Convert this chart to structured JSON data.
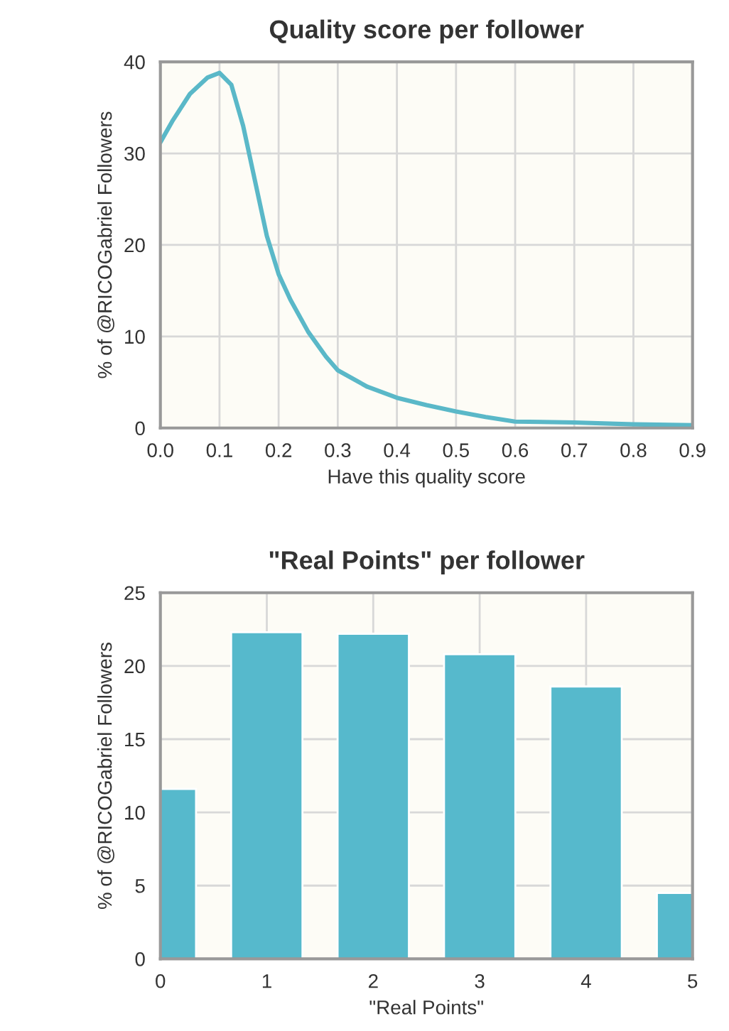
{
  "chart_data": [
    {
      "type": "line",
      "title": "Quality score per follower",
      "xlabel": "Have this quality score",
      "ylabel": "% of @RICOGabriel Followers",
      "x": [
        0,
        0.02,
        0.05,
        0.08,
        0.1,
        0.12,
        0.14,
        0.16,
        0.18,
        0.2,
        0.22,
        0.25,
        0.28,
        0.3,
        0.35,
        0.4,
        0.45,
        0.5,
        0.55,
        0.6,
        0.7,
        0.8,
        0.9
      ],
      "series": [
        {
          "color": "#5ab8c8",
          "values": [
            31.2,
            33.5,
            36.5,
            38.3,
            38.8,
            37.5,
            33,
            27,
            21,
            16.8,
            14,
            10.5,
            7.8,
            6.3,
            4.5,
            3.3,
            2.5,
            1.8,
            1.2,
            0.7,
            0.6,
            0.4,
            0.3
          ]
        }
      ],
      "xlim": [
        0,
        0.9
      ],
      "xticks": [
        {
          "value": 0,
          "label": "0.0"
        },
        0.1,
        0.2,
        0.3,
        0.4,
        0.5,
        0.6,
        0.7,
        0.8,
        0.9
      ],
      "ylim": [
        0,
        40
      ],
      "yticks": [
        0,
        10,
        20,
        30,
        40
      ],
      "grid": true
    },
    {
      "type": "bar",
      "title": "\"Real Points\" per follower",
      "xlabel": "\"Real Points\"",
      "ylabel": "% of @RICOGabriel Followers",
      "x": [
        0,
        1,
        2,
        3,
        4,
        5
      ],
      "series": [
        {
          "color": "#56b9cc",
          "values": [
            11.6,
            22.3,
            22.2,
            20.8,
            18.6,
            4.5
          ]
        }
      ],
      "xlim": [
        0,
        5
      ],
      "xticks": [
        0,
        1,
        2,
        3,
        4,
        5
      ],
      "ylim": [
        0,
        25
      ],
      "yticks": [
        0,
        5,
        10,
        15,
        20,
        25
      ],
      "grid": true
    }
  ]
}
